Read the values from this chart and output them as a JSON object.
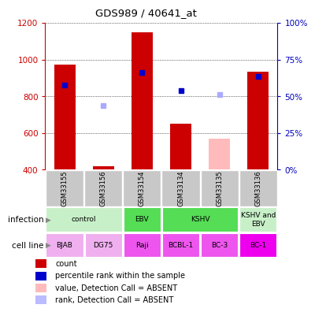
{
  "title": "GDS989 / 40641_at",
  "samples": [
    "GSM33155",
    "GSM33156",
    "GSM33154",
    "GSM33134",
    "GSM33135",
    "GSM33136"
  ],
  "bar_values": [
    975,
    420,
    1150,
    650,
    null,
    935
  ],
  "bar_values_absent": [
    null,
    null,
    null,
    null,
    570,
    null
  ],
  "rank_values": [
    860,
    null,
    930,
    830,
    null,
    910
  ],
  "rank_absent": [
    null,
    750,
    null,
    null,
    810,
    null
  ],
  "ylim_left": [
    400,
    1200
  ],
  "ylim_right": [
    0,
    100
  ],
  "yticks_left": [
    400,
    600,
    800,
    1000,
    1200
  ],
  "yticks_right": [
    0,
    25,
    50,
    75,
    100
  ],
  "infection_groups": [
    {
      "label": "control",
      "span": [
        0,
        2
      ],
      "color": "#c8f0c8"
    },
    {
      "label": "EBV",
      "span": [
        2,
        3
      ],
      "color": "#55dd55"
    },
    {
      "label": "KSHV",
      "span": [
        3,
        5
      ],
      "color": "#55dd55"
    },
    {
      "label": "KSHV and\nEBV",
      "span": [
        5,
        6
      ],
      "color": "#c8f0c8"
    }
  ],
  "cell_lines": [
    "BJAB",
    "DG75",
    "Raji",
    "BCBL-1",
    "BC-3",
    "BC-1"
  ],
  "cell_line_colors": [
    "#f0b0f0",
    "#f0b0f0",
    "#ee55ee",
    "#ee55ee",
    "#ee55ee",
    "#ee00ee"
  ],
  "sample_label_bg": "#c8c8c8",
  "legend_items": [
    {
      "color": "#cc0000",
      "label": "count"
    },
    {
      "color": "#0000cc",
      "label": "percentile rank within the sample"
    },
    {
      "color": "#ffbbbb",
      "label": "value, Detection Call = ABSENT"
    },
    {
      "color": "#bbbbff",
      "label": "rank, Detection Call = ABSENT"
    }
  ],
  "rank_dot_color": "#0000cc",
  "rank_absent_color": "#aaaaff",
  "absent_bar_color": "#ffbbbb",
  "bar_color": "#cc0000",
  "left_tick_color": "#cc0000",
  "right_tick_color": "#0000bb"
}
